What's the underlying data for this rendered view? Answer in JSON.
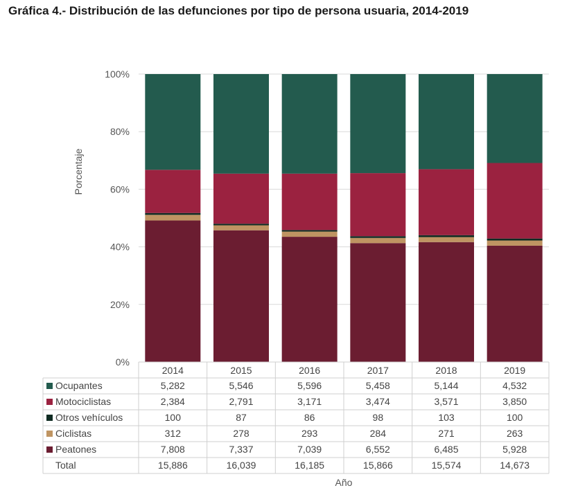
{
  "title": "Gráfica 4.- Distribución de las defunciones por tipo de persona usuaria, 2014-2019",
  "chart_data": {
    "type": "bar",
    "stacked": "percent",
    "categories": [
      "2014",
      "2015",
      "2016",
      "2017",
      "2018",
      "2019"
    ],
    "ylabel": "Porcentaje",
    "xlabel": "Año",
    "ylim": [
      0,
      100
    ],
    "yticks": [
      "0%",
      "20%",
      "40%",
      "60%",
      "80%",
      "100%"
    ],
    "grid": true,
    "legend": "table-below",
    "series": [
      {
        "name": "Peatones",
        "color": "#6b1d31",
        "values": [
          7808,
          7337,
          7039,
          6552,
          6485,
          5928
        ],
        "labels": [
          "7,808",
          "7,337",
          "7,039",
          "6,552",
          "6,485",
          "5,928"
        ]
      },
      {
        "name": "Ciclistas",
        "color": "#bf9462",
        "values": [
          312,
          278,
          293,
          284,
          271,
          263
        ],
        "labels": [
          "312",
          "278",
          "293",
          "284",
          "271",
          "263"
        ]
      },
      {
        "name": "Otros vehículos",
        "color": "#0f2b22",
        "values": [
          100,
          87,
          86,
          98,
          103,
          100
        ],
        "labels": [
          "100",
          "87",
          "86",
          "98",
          "103",
          "100"
        ]
      },
      {
        "name": "Motociclistas",
        "color": "#9b2240",
        "values": [
          2384,
          2791,
          3171,
          3474,
          3571,
          3850
        ],
        "labels": [
          "2,384",
          "2,791",
          "3,171",
          "3,474",
          "3,571",
          "3,850"
        ]
      },
      {
        "name": "Ocupantes",
        "color": "#235b4e",
        "values": [
          5282,
          5546,
          5596,
          5458,
          5144,
          4532
        ],
        "labels": [
          "5,282",
          "5,546",
          "5,596",
          "5,458",
          "5,144",
          "4,532"
        ]
      }
    ],
    "table_rows": [
      "Ocupantes",
      "Motociclistas",
      "Otros vehículos",
      "Ciclistas",
      "Peatones"
    ],
    "total": {
      "name": "Total",
      "labels": [
        "15,886",
        "16,039",
        "16,185",
        "15,866",
        "15,574",
        "14,673"
      ]
    }
  }
}
